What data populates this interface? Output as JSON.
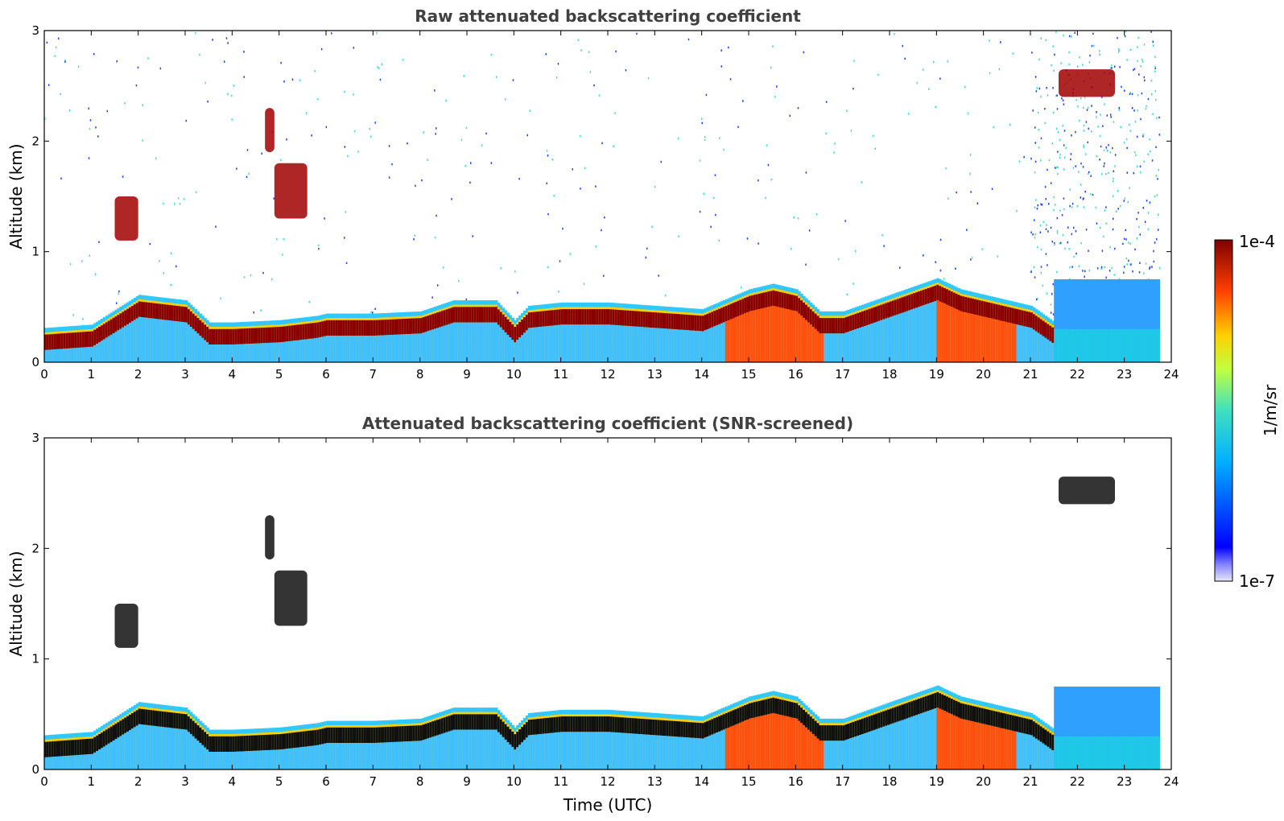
{
  "chart_data": [
    {
      "type": "heatmap",
      "title": "Raw attenuated backscattering coefficient",
      "xlabel": "",
      "ylabel": "Altitude (km)",
      "xlim": [
        0,
        24
      ],
      "ylim": [
        0,
        3
      ],
      "x_ticks": [
        0,
        1,
        2,
        3,
        4,
        5,
        6,
        7,
        8,
        9,
        10,
        11,
        12,
        13,
        14,
        15,
        16,
        17,
        18,
        19,
        20,
        21,
        22,
        23,
        24
      ],
      "y_ticks": [
        0,
        1,
        2,
        3
      ],
      "data_end_time": 23.75,
      "boundary_layer_top_km": [
        [
          0,
          0.25
        ],
        [
          1,
          0.28
        ],
        [
          2,
          0.55
        ],
        [
          3,
          0.5
        ],
        [
          3.5,
          0.3
        ],
        [
          4,
          0.3
        ],
        [
          5,
          0.32
        ],
        [
          5.8,
          0.36
        ],
        [
          6,
          0.38
        ],
        [
          7,
          0.38
        ],
        [
          8,
          0.4
        ],
        [
          8.7,
          0.5
        ],
        [
          9.6,
          0.5
        ],
        [
          10,
          0.32
        ],
        [
          10.3,
          0.45
        ],
        [
          11,
          0.48
        ],
        [
          12,
          0.48
        ],
        [
          13,
          0.45
        ],
        [
          14,
          0.42
        ],
        [
          15,
          0.6
        ],
        [
          15.5,
          0.65
        ],
        [
          16,
          0.6
        ],
        [
          16.5,
          0.4
        ],
        [
          17,
          0.4
        ],
        [
          18,
          0.55
        ],
        [
          19,
          0.7
        ],
        [
          19.5,
          0.6
        ],
        [
          20,
          0.55
        ],
        [
          20.5,
          0.5
        ],
        [
          21,
          0.45
        ],
        [
          21.5,
          0.3
        ]
      ],
      "features": [
        {
          "kind": "cloud",
          "t0": 1.5,
          "t1": 2.0,
          "z0": 1.1,
          "z1": 1.5
        },
        {
          "kind": "cloud",
          "t0": 4.7,
          "t1": 4.9,
          "z0": 1.9,
          "z1": 2.3
        },
        {
          "kind": "cloud",
          "t0": 4.9,
          "t1": 5.6,
          "z0": 1.3,
          "z1": 1.8
        },
        {
          "kind": "cloud",
          "t0": 21.6,
          "t1": 22.8,
          "z0": 2.4,
          "z1": 2.65
        }
      ]
    },
    {
      "type": "heatmap",
      "title": "Attenuated backscattering coefficient (SNR-screened)",
      "xlabel": "Time (UTC)",
      "ylabel": "Altitude (km)",
      "xlim": [
        0,
        24
      ],
      "ylim": [
        0,
        3
      ],
      "x_ticks": [
        0,
        1,
        2,
        3,
        4,
        5,
        6,
        7,
        8,
        9,
        10,
        11,
        12,
        13,
        14,
        15,
        16,
        17,
        18,
        19,
        20,
        21,
        22,
        23,
        24
      ],
      "y_ticks": [
        0,
        1,
        2,
        3
      ],
      "data_end_time": 23.75
    }
  ],
  "colorbar": {
    "label": "1/m/sr",
    "min_label": "1e-7",
    "max_label": "1e-4",
    "colormap": "jet",
    "low_color": "#e8e8f8",
    "high_color": "#7f0000"
  }
}
